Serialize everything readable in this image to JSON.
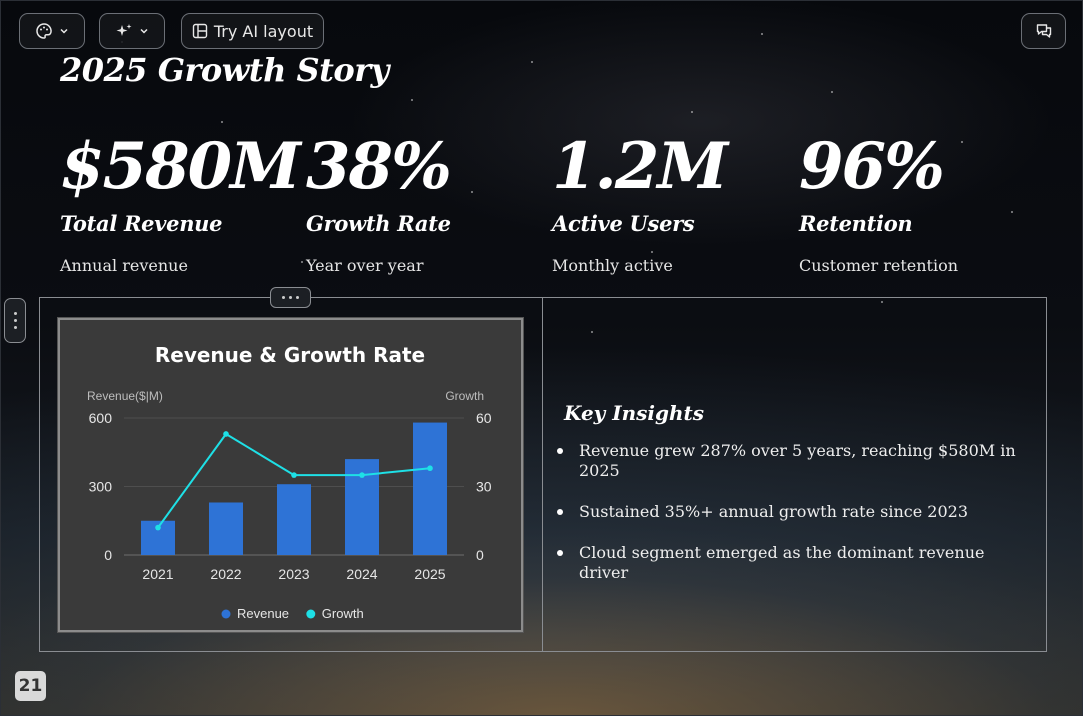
{
  "toolbar": {
    "theme_icon": "palette-icon",
    "ai_icon": "sparkles-icon",
    "layout_label": "Try AI layout",
    "comments_icon": "comments-icon"
  },
  "slide": {
    "title": "2025 Growth Story",
    "page_number": "21",
    "stats": [
      {
        "value": "$580M",
        "label": "Total Revenue",
        "desc": "Annual revenue"
      },
      {
        "value": "38%",
        "label": "Growth Rate",
        "desc": "Year over year"
      },
      {
        "value": "1.2M",
        "label": "Active Users",
        "desc": "Monthly active"
      },
      {
        "value": "96%",
        "label": "Retention",
        "desc": "Customer retention"
      }
    ],
    "insights": {
      "title": "Key Insights",
      "items": [
        "Revenue grew 287% over 5 years, reaching $580M in 2025",
        "Sustained 35%+ annual growth rate since 2023",
        "Cloud segment emerged as the dominant revenue driver"
      ]
    }
  },
  "colors": {
    "bar": "#2e73d6",
    "line": "#1ee0e6",
    "card": "#3a3a3a"
  },
  "chart_data": {
    "type": "bar",
    "title": "Revenue & Growth Rate",
    "categories": [
      "2021",
      "2022",
      "2023",
      "2024",
      "2025"
    ],
    "series": [
      {
        "name": "Revenue",
        "type": "bar",
        "axis": "left",
        "values": [
          150,
          230,
          310,
          420,
          580
        ]
      },
      {
        "name": "Growth",
        "type": "line",
        "axis": "right",
        "values": [
          12,
          53,
          35,
          35,
          38
        ]
      }
    ],
    "ylabel": "Revenue($|M)",
    "ylabel_right": "Growth",
    "ylim": [
      0,
      600
    ],
    "ylim_right": [
      0,
      60
    ],
    "yticks": [
      "0",
      "300",
      "600"
    ],
    "yticks_right": [
      "0",
      "30",
      "60"
    ],
    "legend": "bottom",
    "grid": true
  }
}
